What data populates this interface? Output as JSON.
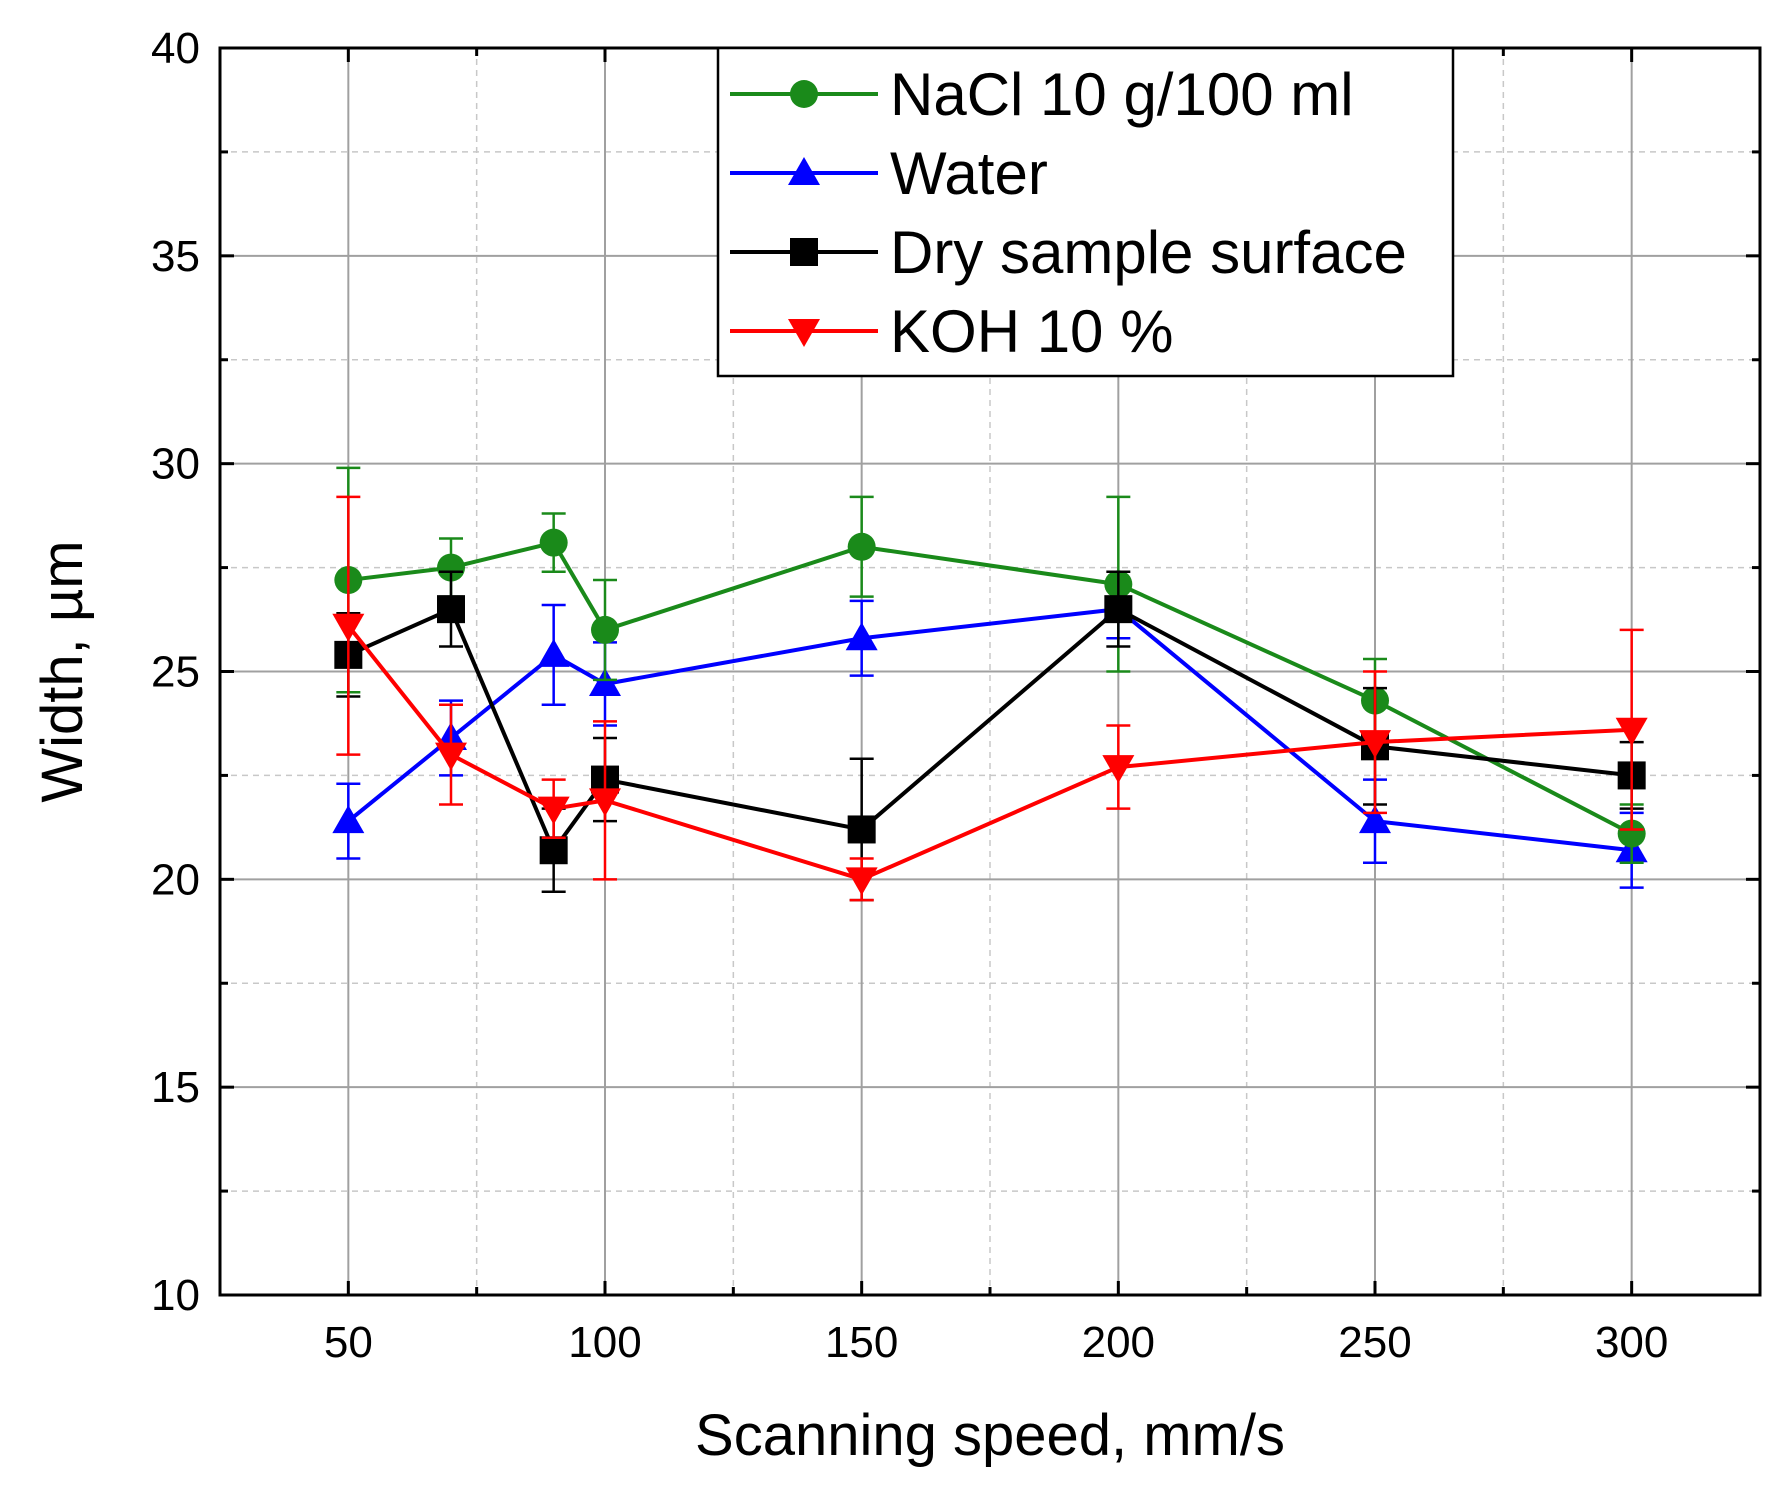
{
  "chart_data": {
    "type": "line",
    "title": "",
    "xlabel": "Scanning speed, mm/s",
    "ylabel": "Width, µm",
    "xlim": [
      25,
      325
    ],
    "ylim": [
      10,
      40
    ],
    "xticks": [
      50,
      100,
      150,
      200,
      250,
      300
    ],
    "yticks": [
      10,
      15,
      20,
      25,
      30,
      35,
      40
    ],
    "grid": true,
    "legend_position": "top-center",
    "x": [
      50,
      70,
      90,
      100,
      150,
      200,
      250,
      300
    ],
    "series": [
      {
        "name": "NaCl 10 g/100 ml",
        "color": "#1a8a1a",
        "marker": "circle",
        "values": [
          27.2,
          27.5,
          28.1,
          26.0,
          28.0,
          27.1,
          24.3,
          21.1
        ],
        "errors": [
          2.7,
          0.7,
          0.7,
          1.2,
          1.2,
          2.1,
          1.0,
          0.7
        ]
      },
      {
        "name": "Water",
        "color": "#0000ff",
        "marker": "triangle-up",
        "values": [
          21.4,
          23.4,
          25.4,
          24.7,
          25.8,
          26.5,
          21.4,
          20.7
        ],
        "errors": [
          0.9,
          0.9,
          1.2,
          1.0,
          0.9,
          0.7,
          1.0,
          0.9
        ]
      },
      {
        "name": "Dry sample surface",
        "color": "#000000",
        "marker": "square",
        "values": [
          25.4,
          26.5,
          20.7,
          22.4,
          21.2,
          26.5,
          23.2,
          22.5
        ],
        "errors": [
          1.0,
          0.9,
          1.0,
          1.0,
          1.7,
          0.9,
          1.4,
          0.8
        ]
      },
      {
        "name": "KOH 10 %",
        "color": "#ff0000",
        "marker": "triangle-down",
        "values": [
          26.1,
          23.0,
          21.7,
          21.9,
          20.0,
          22.7,
          23.3,
          23.6
        ],
        "errors": [
          3.1,
          1.2,
          0.7,
          1.9,
          0.5,
          1.0,
          1.7,
          2.4
        ]
      }
    ]
  }
}
